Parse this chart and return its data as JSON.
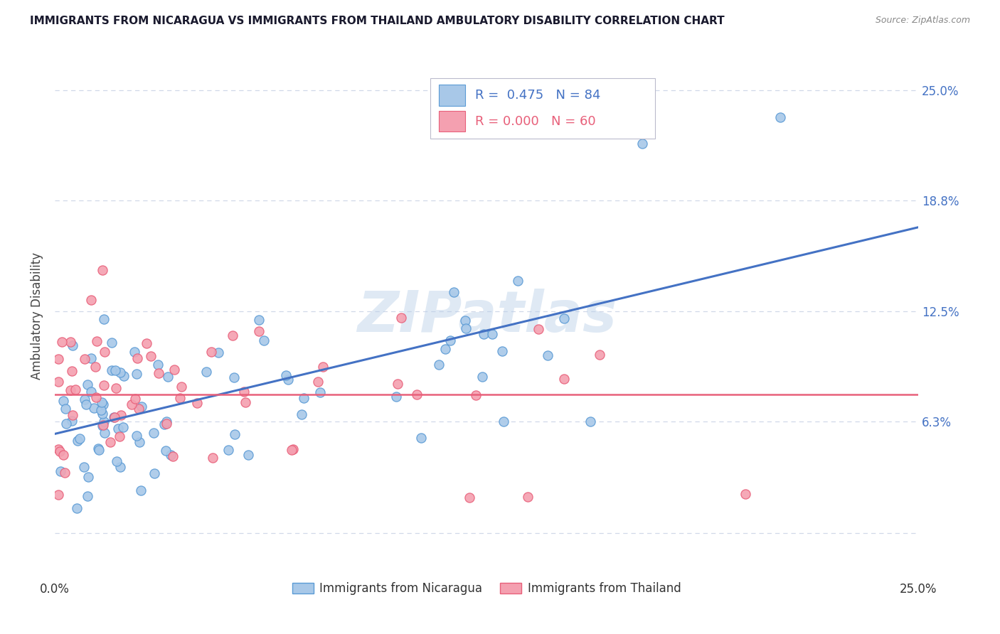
{
  "title": "IMMIGRANTS FROM NICARAGUA VS IMMIGRANTS FROM THAILAND AMBULATORY DISABILITY CORRELATION CHART",
  "source": "Source: ZipAtlas.com",
  "ylabel": "Ambulatory Disability",
  "xlim": [
    0.0,
    0.25
  ],
  "ylim": [
    -0.025,
    0.27
  ],
  "yticks": [
    0.0,
    0.063,
    0.125,
    0.188,
    0.25
  ],
  "ytick_labels": [
    "",
    "6.3%",
    "12.5%",
    "18.8%",
    "25.0%"
  ],
  "color_blue": "#a8c8e8",
  "color_pink": "#f4a0b0",
  "edge_blue": "#5b9bd5",
  "edge_pink": "#e8607a",
  "line_blue": "#4472c4",
  "line_pink": "#e8607a",
  "watermark": "ZIPatlas",
  "grid_color": "#d0d8e8",
  "background": "#ffffff",
  "legend_r1_label": "R =  0.475   N = 84",
  "legend_r2_label": "R = 0.000   N = 60",
  "legend_r1_color": "#4472c4",
  "legend_r2_color": "#e8607a",
  "title_color": "#1a1a2e",
  "source_color": "#888888",
  "yaxis_color": "#4472c4",
  "ylabel_color": "#444444"
}
